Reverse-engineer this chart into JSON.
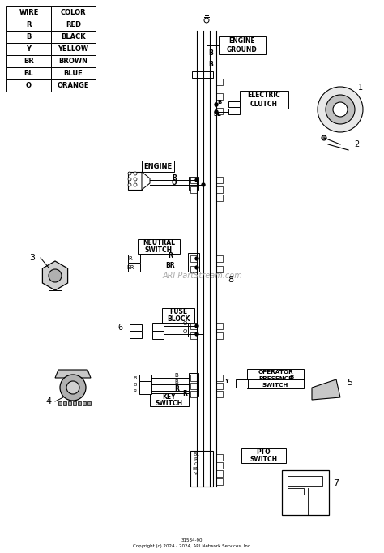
{
  "bg_color": "#ffffff",
  "fig_width": 4.74,
  "fig_height": 6.82,
  "dpi": 100,
  "table_headers": [
    "WIRE",
    "COLOR"
  ],
  "table_rows": [
    [
      "R",
      "RED"
    ],
    [
      "B",
      "BLACK"
    ],
    [
      "Y",
      "YELLOW"
    ],
    [
      "BR",
      "BROWN"
    ],
    [
      "BL",
      "BLUE"
    ],
    [
      "O",
      "ORANGE"
    ]
  ],
  "footer_line1": "31584-90",
  "footer_line2": "Copyright (c) 2024 - 2024, ARI Network Services, Inc.",
  "watermark": "ARI PartStream.com"
}
